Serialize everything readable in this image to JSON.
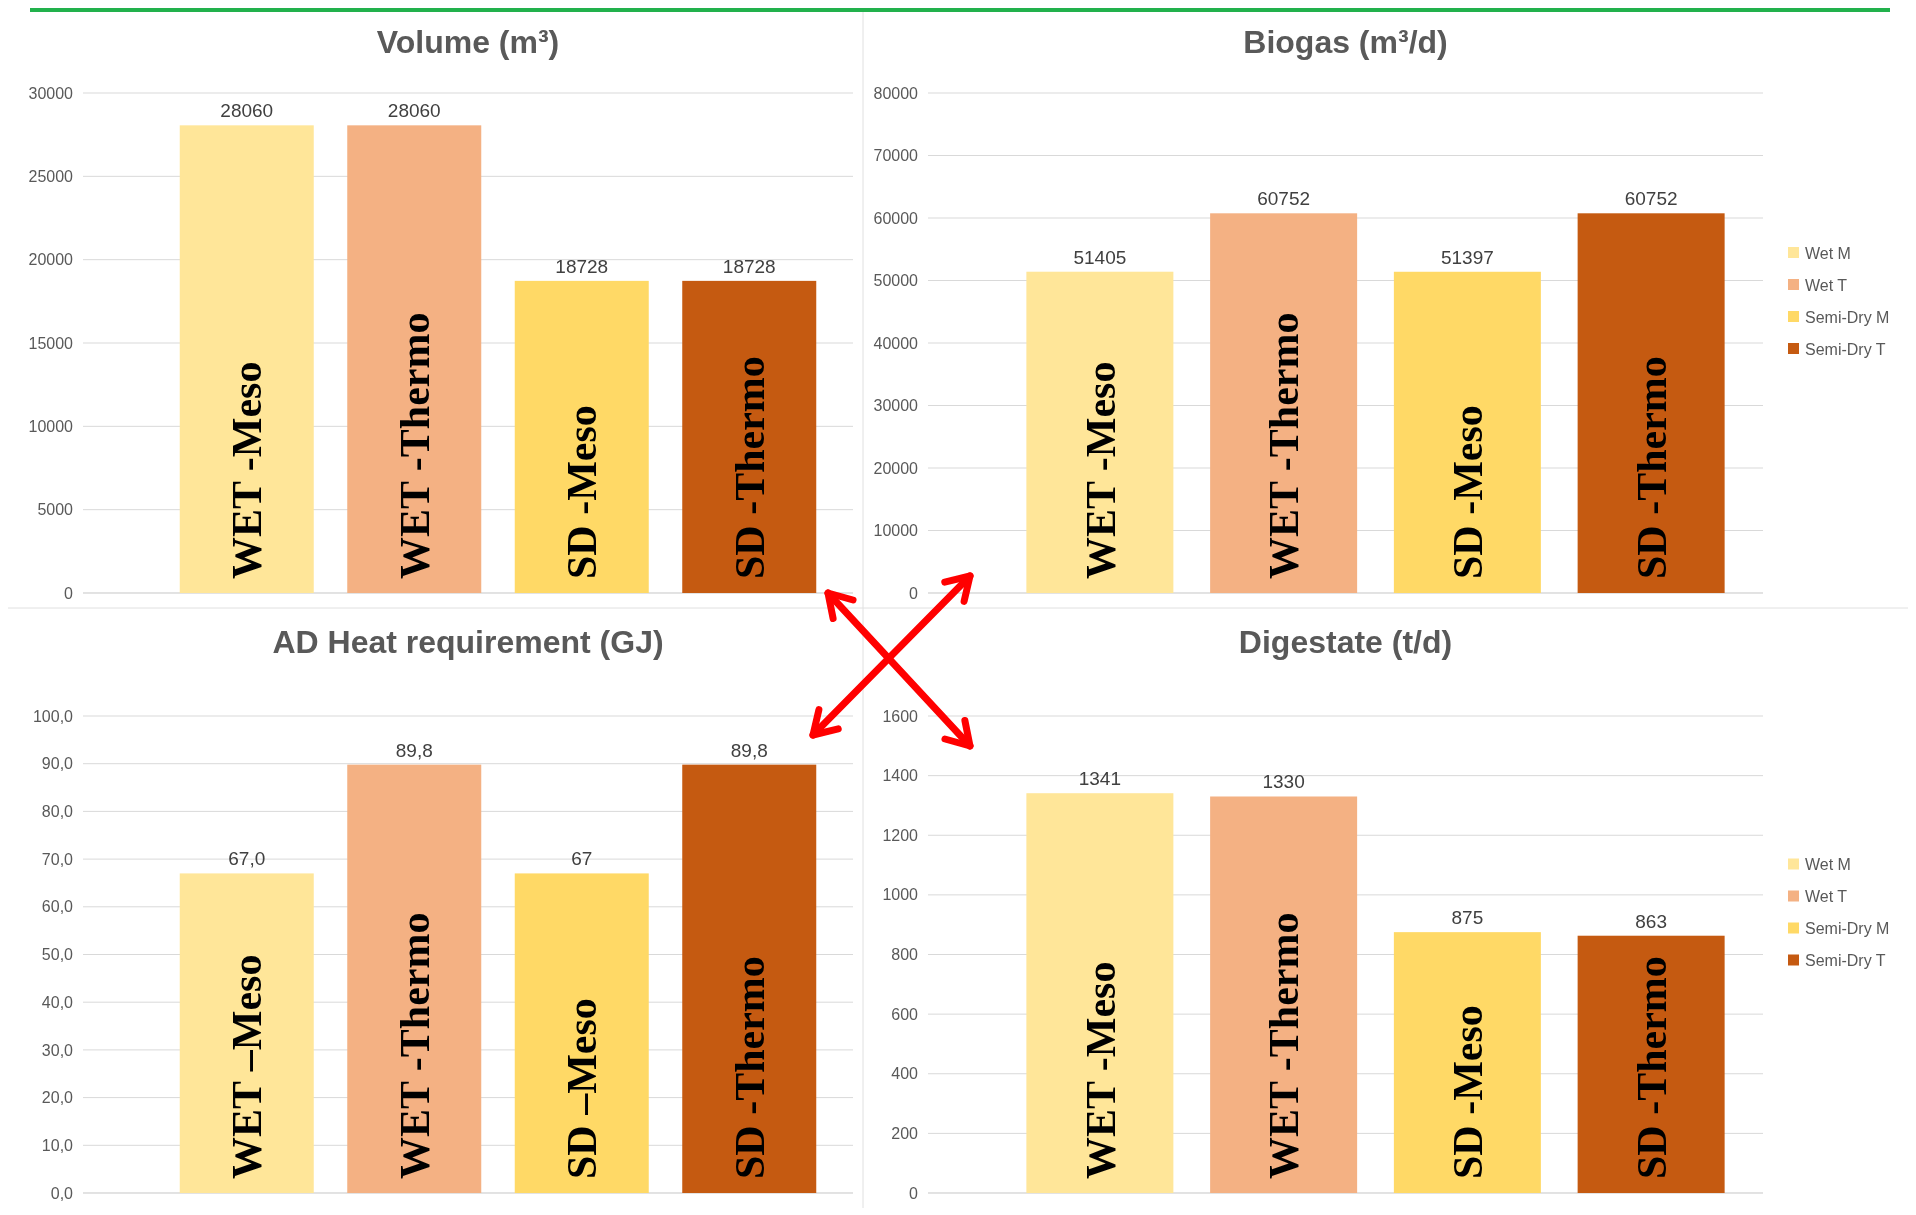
{
  "chart_data": [
    {
      "type": "bar",
      "title": "Volume (m³)",
      "categories": [
        "WET -Meso",
        "WET -Thermo",
        "SD -Meso",
        "SD -Thermo"
      ],
      "values": [
        28060,
        28060,
        18728,
        18728
      ],
      "colors": [
        "#ffe699",
        "#f4b183",
        "#ffd966",
        "#c55a11"
      ],
      "ylim": [
        0,
        30000
      ],
      "yticks": [
        0,
        5000,
        10000,
        15000,
        20000,
        25000,
        30000
      ],
      "grid": "y",
      "data_labels": true
    },
    {
      "type": "bar",
      "title": "Biogas (m³/d)",
      "categories": [
        "WET -Meso",
        "WET -Thermo",
        "SD -Meso",
        "SD -Thermo"
      ],
      "series": [
        {
          "name": "Wet M",
          "color": "#ffe699",
          "values": [
            51405,
            null,
            null,
            null
          ]
        },
        {
          "name": "Wet T",
          "color": "#f4b183",
          "values": [
            null,
            60752,
            null,
            null
          ]
        },
        {
          "name": "Semi-Dry M",
          "color": "#ffd966",
          "values": [
            null,
            null,
            51397,
            null
          ]
        },
        {
          "name": "Semi-Dry T",
          "color": "#c55a11",
          "values": [
            null,
            null,
            null,
            60752
          ]
        }
      ],
      "ylim": [
        0,
        80000
      ],
      "yticks": [
        0,
        10000,
        20000,
        30000,
        40000,
        50000,
        60000,
        70000,
        80000
      ],
      "grid": "y",
      "data_labels": true,
      "legend": "right"
    },
    {
      "type": "bar",
      "title": "AD Heat requirement (GJ)",
      "categories": [
        "WET –Meso",
        "WET -Thermo",
        "SD –Meso",
        "SD -Thermo"
      ],
      "values": [
        67,
        89.8,
        67,
        89.8
      ],
      "value_labels": [
        "67,0",
        "89,8",
        "67",
        "89,8"
      ],
      "colors": [
        "#ffe699",
        "#f4b183",
        "#ffd966",
        "#c55a11"
      ],
      "ylim": [
        0,
        100
      ],
      "yticks": [
        {
          "value": 0,
          "label": "0,0"
        },
        {
          "value": 10,
          "label": "10,0"
        },
        {
          "value": 20,
          "label": "20,0"
        },
        {
          "value": 30,
          "label": "30,0"
        },
        {
          "value": 40,
          "label": "40,0"
        },
        {
          "value": 50,
          "label": "50,0"
        },
        {
          "value": 60,
          "label": "60,0"
        },
        {
          "value": 70,
          "label": "70,0"
        },
        {
          "value": 80,
          "label": "80,0"
        },
        {
          "value": 90,
          "label": "90,0"
        },
        {
          "value": 100,
          "label": "100,0"
        }
      ],
      "grid": "y"
    },
    {
      "type": "bar",
      "title": "Digestate (t/d)",
      "categories": [
        "WET -Meso",
        "WET -Thermo",
        "SD -Meso",
        "SD -Thermo"
      ],
      "series": [
        {
          "name": "Wet M",
          "color": "#ffe699",
          "values": [
            1341,
            null,
            null,
            null
          ]
        },
        {
          "name": "Wet T",
          "color": "#f4b183",
          "values": [
            null,
            1330,
            null,
            null
          ]
        },
        {
          "name": "Semi-Dry M",
          "color": "#ffd966",
          "values": [
            null,
            null,
            875,
            null
          ]
        },
        {
          "name": "Semi-Dry T",
          "color": "#c55a11",
          "values": [
            null,
            null,
            null,
            863
          ]
        }
      ],
      "ylim": [
        0,
        1600
      ],
      "yticks": [
        0,
        200,
        400,
        600,
        800,
        1000,
        1200,
        1400,
        1600
      ],
      "grid": "y",
      "data_labels": true,
      "legend": "right"
    }
  ]
}
